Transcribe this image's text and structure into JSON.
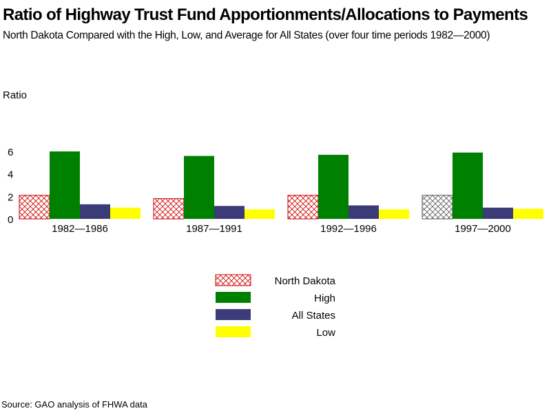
{
  "title": "Ratio of Highway Trust Fund Apportionments/Allocations to Payments",
  "subtitle": "North Dakota Compared with the High, Low, and Average for All States (over four time periods 1982—2000)",
  "source": "Source: GAO analysis of FHWA data",
  "colors": {
    "north_dakota": "#cc0000",
    "high": "#008000",
    "all_states": "#3b3b78",
    "low": "#ffff00"
  },
  "chart_data": {
    "type": "bar",
    "ylabel": "Ratio",
    "ylim": [
      0,
      6.5
    ],
    "yticks": [
      "0",
      "2",
      "4",
      "6"
    ],
    "categories": [
      "1982—1986",
      "1987—1991",
      "1992—1996",
      "1997—2000"
    ],
    "series": [
      {
        "name": "North Dakota",
        "key": "north_dakota",
        "pattern": "crosshatch",
        "values": [
          2.1,
          1.8,
          2.1,
          2.1
        ]
      },
      {
        "name": "High",
        "key": "high",
        "values": [
          6.0,
          5.6,
          5.7,
          5.9
        ]
      },
      {
        "name": "All States",
        "key": "all_states",
        "values": [
          1.3,
          1.15,
          1.2,
          1.0
        ]
      },
      {
        "name": "Low",
        "key": "low",
        "values": [
          1.0,
          0.85,
          0.85,
          0.9
        ]
      }
    ],
    "legend_order": [
      "North Dakota",
      "High",
      "All States",
      "Low"
    ],
    "legend_position": "bottom-center",
    "grid": false
  }
}
